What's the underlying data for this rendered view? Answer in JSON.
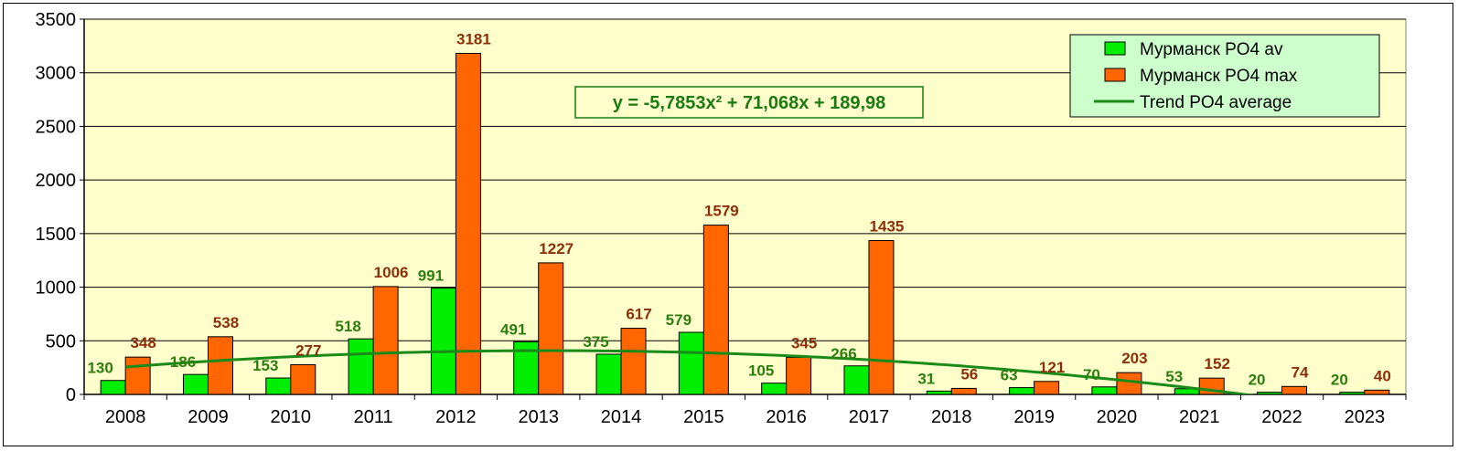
{
  "chart_data": {
    "type": "bar",
    "title": "",
    "xlabel": "",
    "ylabel": "",
    "categories": [
      "2008",
      "2009",
      "2010",
      "2011",
      "2012",
      "2013",
      "2014",
      "2015",
      "2016",
      "2017",
      "2018",
      "2019",
      "2020",
      "2021",
      "2022",
      "2023"
    ],
    "series": [
      {
        "name": "Мурманск PO4 av",
        "color": "#00ee00",
        "values": [
          130,
          186,
          153,
          518,
          991,
          491,
          375,
          579,
          105,
          266,
          31,
          63,
          70,
          53,
          20,
          20
        ]
      },
      {
        "name": "Мурманск PO4 max",
        "color": "#ff6600",
        "values": [
          348,
          538,
          277,
          1006,
          3181,
          1227,
          617,
          1579,
          345,
          1435,
          56,
          121,
          203,
          152,
          74,
          40
        ]
      }
    ],
    "trend": {
      "name": "Trend PO4 average",
      "color": "#1a8a1a",
      "equation": "y = -5,7853x² + 71,068x + 189,98",
      "a": -5.7853,
      "b": 71.068,
      "c": 189.98
    },
    "ylim": [
      0,
      3500
    ],
    "yticks": [
      0,
      500,
      1000,
      1500,
      2000,
      2500,
      3000,
      3500
    ],
    "grid": true,
    "legend_position": "top-right",
    "plot_background": "#ffffcc",
    "legend_background": "#ccffcc"
  }
}
